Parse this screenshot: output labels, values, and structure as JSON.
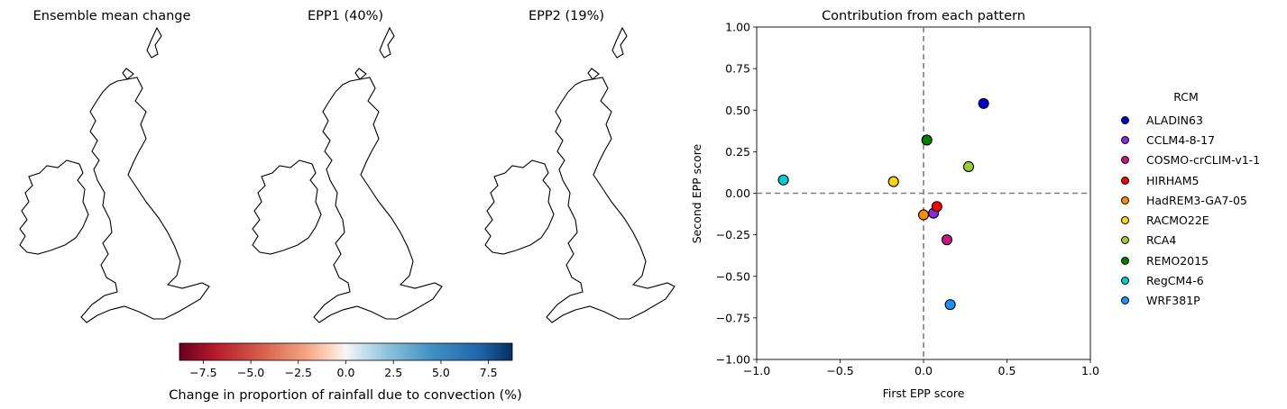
{
  "map_panels": [
    {
      "title": "Ensemble mean change"
    },
    {
      "title": "EPP1 (40%)"
    },
    {
      "title": "EPP2 (19%)"
    }
  ],
  "colorbar": {
    "label": "Change in proportion of rainfall due to convection (%)",
    "range": [
      -8.75,
      8.75
    ],
    "ticks": [
      "−7.5",
      "−5.0",
      "−2.5",
      "0.0",
      "2.5",
      "5.0",
      "7.5"
    ],
    "tick_values": [
      -7.5,
      -5.0,
      -2.5,
      0.0,
      2.5,
      5.0,
      7.5
    ],
    "colormap": "RdBu"
  },
  "chart_data": {
    "type": "scatter",
    "title": "Contribution from each pattern",
    "xlabel": "First EPP score",
    "ylabel": "Second EPP score",
    "xlim": [
      -1.0,
      1.0
    ],
    "ylim": [
      -1.0,
      1.0
    ],
    "x_ticks": [
      "−1.0",
      "−0.5",
      "0.0",
      "0.5",
      "1.0"
    ],
    "x_tick_values": [
      -1.0,
      -0.5,
      0.0,
      0.5,
      1.0
    ],
    "y_ticks": [
      "−1.00",
      "−0.75",
      "−0.50",
      "−0.25",
      "0.00",
      "0.25",
      "0.50",
      "0.75",
      "1.00"
    ],
    "y_tick_values": [
      -1.0,
      -0.75,
      -0.5,
      -0.25,
      0.0,
      0.25,
      0.5,
      0.75,
      1.0
    ],
    "reference_lines": {
      "x": 0.0,
      "y": 0.0,
      "style": "dashed",
      "color": "#808080"
    },
    "grid": false,
    "legend": {
      "title": "RCM",
      "placement": "outside-right"
    },
    "series": [
      {
        "name": "ALADIN63",
        "x": 0.36,
        "y": 0.54,
        "color": "#0000cd"
      },
      {
        "name": "CCLM4-8-17",
        "x": 0.06,
        "y": -0.12,
        "color": "#8a2be2"
      },
      {
        "name": "COSMO-crCLIM-v1-1",
        "x": 0.14,
        "y": -0.28,
        "color": "#c71585"
      },
      {
        "name": "HIRHAM5",
        "x": 0.08,
        "y": -0.08,
        "color": "#ff0000"
      },
      {
        "name": "HadREM3-GA7-05",
        "x": 0.0,
        "y": -0.13,
        "color": "#ff8c00"
      },
      {
        "name": "RACMO22E",
        "x": -0.18,
        "y": 0.07,
        "color": "#ffd700"
      },
      {
        "name": "RCA4",
        "x": 0.27,
        "y": 0.16,
        "color": "#9acd32"
      },
      {
        "name": "REMO2015",
        "x": 0.02,
        "y": 0.32,
        "color": "#008000"
      },
      {
        "name": "RegCM4-6",
        "x": -0.84,
        "y": 0.08,
        "color": "#00ced1"
      },
      {
        "name": "WRF381P",
        "x": 0.16,
        "y": -0.67,
        "color": "#1e90ff"
      }
    ]
  }
}
